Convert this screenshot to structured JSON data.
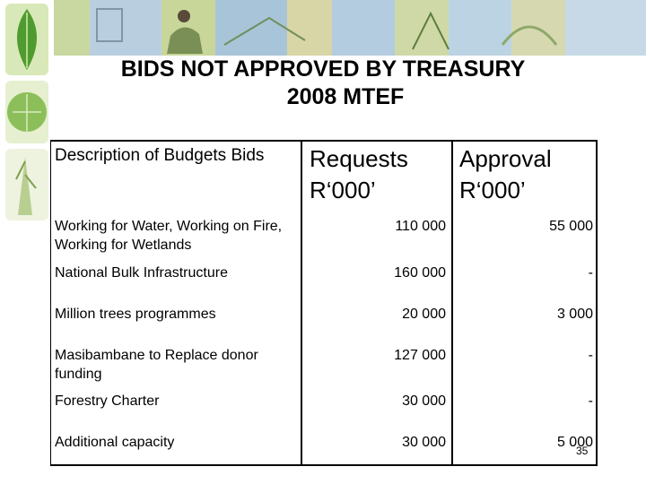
{
  "title": {
    "line1": "BIDS NOT APPROVED BY TREASURY",
    "line2": "2008 MTEF"
  },
  "table": {
    "headers": {
      "description": "Description of Budgets Bids",
      "requests_line1": "Requests",
      "requests_line2": "R‘000’",
      "approval_line1": "Approval",
      "approval_line2": "R‘000’"
    },
    "rows": [
      {
        "description": "Working for Water, Working on Fire, Working for Wetlands",
        "requests": "110 000",
        "approval": "55 000"
      },
      {
        "description": "National Bulk Infrastructure",
        "requests": "160 000",
        "approval": "-"
      },
      {
        "description": "Million trees programmes",
        "requests": "20 000",
        "approval": "3 000"
      },
      {
        "description": "Masibambane to Replace donor funding",
        "requests": "127 000",
        "approval": "-"
      },
      {
        "description": "Forestry Charter",
        "requests": "30 000",
        "approval": "-"
      },
      {
        "description": "Additional capacity",
        "requests": "30 000",
        "approval": "5 000"
      }
    ]
  },
  "page_number": "35",
  "colors": {
    "leaf_green": "#6aa83a",
    "banner_blue": "#a9c4d6",
    "banner_olive": "#b7b27a"
  }
}
